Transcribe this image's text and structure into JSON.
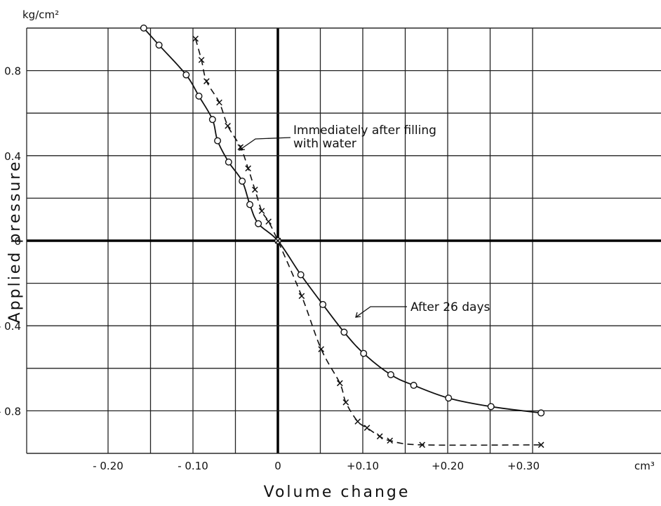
{
  "chart_data": {
    "type": "line",
    "title": "",
    "xlabel": "Volume change",
    "ylabel": "Applied pressure",
    "x_unit": "cm³",
    "y_unit": "kg/cm²",
    "xlim": [
      -0.2,
      0.31
    ],
    "ylim": [
      -1.0,
      1.0
    ],
    "grid": true,
    "x_ticks": [
      {
        "value": -0.2,
        "label": "- 0.20"
      },
      {
        "value": -0.1,
        "label": "- 0.10"
      },
      {
        "value": 0,
        "label": "0"
      },
      {
        "value": 0.1,
        "label": "+0.10"
      },
      {
        "value": 0.2,
        "label": "+0.20"
      },
      {
        "value": 0.3,
        "label": "+0.30"
      }
    ],
    "y_ticks": [
      {
        "value": 0.8,
        "label": "0.8"
      },
      {
        "value": 0.4,
        "label": "0.4"
      },
      {
        "value": 0,
        "label": "0"
      },
      {
        "value": -0.4,
        "label": "- 0.4"
      },
      {
        "value": -0.8,
        "label": "- 0.8"
      }
    ],
    "series": [
      {
        "name": "After 26 days",
        "line": "solid",
        "marker": "circle",
        "x": [
          -0.158,
          -0.14,
          -0.108,
          -0.093,
          -0.077,
          -0.071,
          -0.058,
          -0.042,
          -0.033,
          -0.023,
          0.0,
          0.027,
          0.053,
          0.078,
          0.101,
          0.133,
          0.16,
          0.201,
          0.251,
          0.31
        ],
        "y": [
          1.0,
          0.92,
          0.78,
          0.68,
          0.57,
          0.47,
          0.37,
          0.28,
          0.17,
          0.08,
          0.0,
          -0.16,
          -0.3,
          -0.43,
          -0.53,
          -0.63,
          -0.68,
          -0.74,
          -0.78,
          -0.81
        ]
      },
      {
        "name": "Immediately after filling with water",
        "line": "dashed",
        "marker": "x",
        "x": [
          -0.097,
          -0.09,
          -0.084,
          -0.069,
          -0.059,
          -0.044,
          -0.035,
          -0.027,
          -0.019,
          -0.011,
          0.0,
          0.028,
          0.051,
          0.073,
          0.08,
          0.094,
          0.105,
          0.12,
          0.132,
          0.17,
          0.31
        ],
        "y": [
          0.95,
          0.85,
          0.75,
          0.65,
          0.54,
          0.44,
          0.34,
          0.24,
          0.14,
          0.09,
          0.0,
          -0.26,
          -0.51,
          -0.67,
          -0.76,
          -0.85,
          -0.88,
          -0.92,
          -0.94,
          -0.96,
          -0.96
        ]
      }
    ],
    "annotations": [
      {
        "id": "immediate",
        "lines": [
          "Immediately after filling",
          "with water"
        ],
        "points_to_x": -0.042,
        "points_to_y": 0.42
      },
      {
        "id": "after26",
        "lines": [
          "After 26 days"
        ],
        "points_to_x": 0.075,
        "points_to_y": -0.37
      }
    ]
  }
}
